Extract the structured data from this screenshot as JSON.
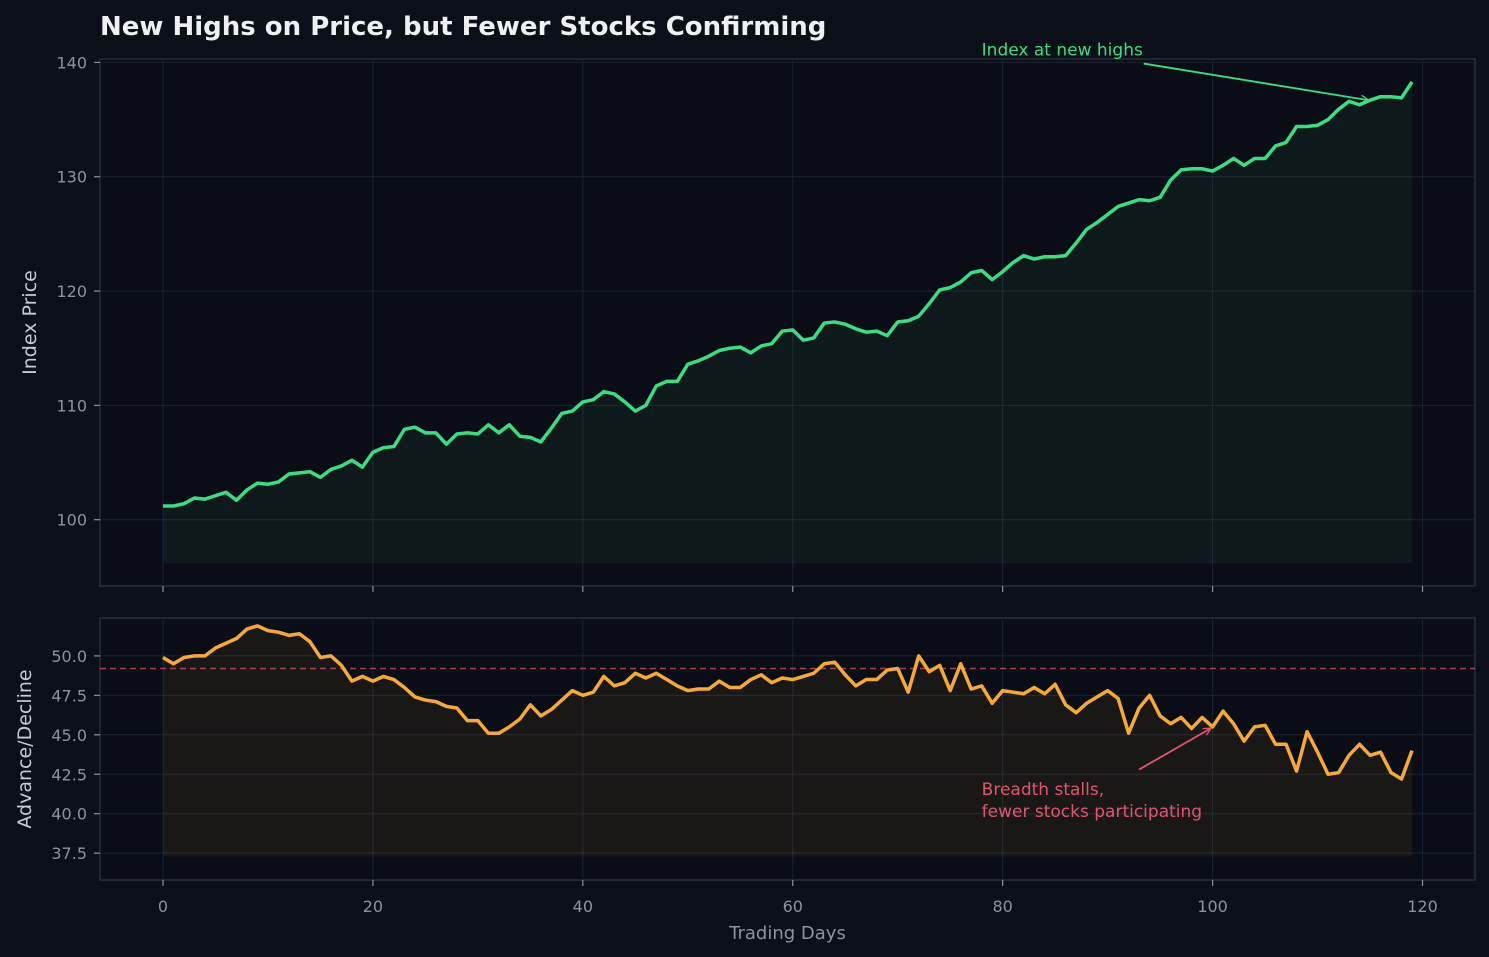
{
  "title": "New Highs on Price, but Fewer Stocks Confirming",
  "colors": {
    "background": "#0b0f17",
    "panel": "#0a0d15",
    "price_line": "#3ddc84",
    "breadth_line": "#f5a93a",
    "reference_line": "#d9506b",
    "breadth_annotation": "#e0556e",
    "price_annotation": "#3ddc84"
  },
  "chart_data": [
    {
      "type": "area",
      "panel": "top",
      "ylabel": "Index Price",
      "xlim": [
        -6,
        125
      ],
      "ylim": [
        94.2,
        140.3
      ],
      "yticks": [
        100,
        110,
        120,
        130,
        140
      ],
      "xticks": [
        0,
        20,
        40,
        60,
        80,
        100,
        120
      ],
      "fill_baseline": 96.2,
      "grid": true,
      "series": [
        {
          "values": [
            101.2,
            101.2,
            101.4,
            101.9,
            101.8,
            102.1,
            102.4,
            101.7,
            102.6,
            103.2,
            103.1,
            103.3,
            104.0,
            104.1,
            104.2,
            103.7,
            104.4,
            104.7,
            105.2,
            104.6,
            105.9,
            106.3,
            106.4,
            107.9,
            108.1,
            107.6,
            107.6,
            106.6,
            107.5,
            107.6,
            107.5,
            108.3,
            107.6,
            108.3,
            107.3,
            107.2,
            106.8,
            108.0,
            109.3,
            109.5,
            110.3,
            110.5,
            111.2,
            111.0,
            110.3,
            109.5,
            110.0,
            111.7,
            112.1,
            112.1,
            113.6,
            113.9,
            114.3,
            114.8,
            115.0,
            115.1,
            114.6,
            115.2,
            115.4,
            116.5,
            116.6,
            115.7,
            115.9,
            117.2,
            117.3,
            117.1,
            116.7,
            116.4,
            116.5,
            116.1,
            117.3,
            117.4,
            117.8,
            118.9,
            120.1,
            120.3,
            120.8,
            121.6,
            121.8,
            121.0,
            121.7,
            122.5,
            123.1,
            122.8,
            123.0,
            123.0,
            123.1,
            124.2,
            125.4,
            126.0,
            126.7,
            127.4,
            127.7,
            128.0,
            127.9,
            128.2,
            129.7,
            130.6,
            130.7,
            130.7,
            130.5,
            131.0,
            131.6,
            131.0,
            131.6,
            131.6,
            132.7,
            133.0,
            134.4,
            134.4,
            134.5,
            135.0,
            135.9,
            136.6,
            136.3,
            136.7,
            137.0,
            137.0,
            136.9,
            138.3
          ]
        }
      ],
      "annotations": [
        {
          "text": "Index at new highs",
          "x": 78,
          "y": 141.3,
          "arrow_to_x": 114.8,
          "arrow_to_y": 136.7
        }
      ]
    },
    {
      "type": "area",
      "panel": "bottom",
      "xlabel": "Trading Days",
      "ylabel": "Advance/Decline",
      "xlim": [
        -6,
        125
      ],
      "ylim": [
        35.8,
        52.4
      ],
      "yticks": [
        37.5,
        40.0,
        42.5,
        45.0,
        47.5,
        50.0
      ],
      "ytick_labels": [
        "37.5",
        "40.0",
        "42.5",
        "45.0",
        "47.5",
        "50.0"
      ],
      "xticks": [
        0,
        20,
        40,
        60,
        80,
        100,
        120
      ],
      "fill_baseline": 37.3,
      "reference_line": 49.2,
      "grid": true,
      "series": [
        {
          "values": [
            49.9,
            49.5,
            49.9,
            50.0,
            50.0,
            50.5,
            50.8,
            51.1,
            51.7,
            51.9,
            51.6,
            51.5,
            51.3,
            51.4,
            50.9,
            49.9,
            50.0,
            49.4,
            48.4,
            48.7,
            48.4,
            48.7,
            48.5,
            48.0,
            47.4,
            47.2,
            47.1,
            46.8,
            46.7,
            45.9,
            45.9,
            45.1,
            45.1,
            45.5,
            46.0,
            46.9,
            46.2,
            46.6,
            47.2,
            47.8,
            47.5,
            47.7,
            48.7,
            48.1,
            48.3,
            48.9,
            48.6,
            48.9,
            48.5,
            48.1,
            47.8,
            47.9,
            47.9,
            48.4,
            48.0,
            48.0,
            48.5,
            48.8,
            48.3,
            48.6,
            48.5,
            48.7,
            48.9,
            49.5,
            49.6,
            48.8,
            48.1,
            48.5,
            48.5,
            49.1,
            49.2,
            47.7,
            50.0,
            49.0,
            49.4,
            47.8,
            49.5,
            47.9,
            48.1,
            47.0,
            47.8,
            47.7,
            47.6,
            48.0,
            47.6,
            48.2,
            46.9,
            46.4,
            47.0,
            47.4,
            47.8,
            47.3,
            45.1,
            46.7,
            47.5,
            46.2,
            45.7,
            46.1,
            45.4,
            46.1,
            45.5,
            46.5,
            45.7,
            44.6,
            45.5,
            45.6,
            44.4,
            44.4,
            42.7,
            45.2,
            43.9,
            42.5,
            42.6,
            43.7,
            44.4,
            43.7,
            43.9,
            42.6,
            42.2,
            44.0
          ]
        }
      ],
      "annotations": [
        {
          "text_lines": [
            "Breadth stalls,",
            "fewer stocks participating"
          ],
          "x": 78,
          "y": 41.2,
          "arrow_from_x": 93.0,
          "arrow_from_y": 42.8,
          "arrow_to_x": 99.8,
          "arrow_to_y": 45.4
        }
      ]
    }
  ]
}
